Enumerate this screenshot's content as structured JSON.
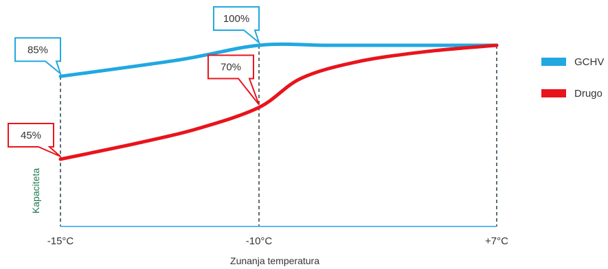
{
  "chart_data": {
    "type": "line",
    "xlabel": "Zunanja temperatura",
    "ylabel": "Kapaciteta",
    "categories": [
      "-15°C",
      "-10°C",
      "+7°C"
    ],
    "x": [
      -15,
      -10,
      7
    ],
    "ylim": [
      0,
      100
    ],
    "grid": false,
    "legend": "right",
    "series": [
      {
        "name": "GCHV",
        "color": "#21a8e0",
        "points": [
          [
            -15,
            85
          ],
          [
            -12,
            93
          ],
          [
            -10,
            100
          ],
          [
            -5,
            100
          ],
          [
            0,
            100
          ],
          [
            7,
            100
          ]
        ]
      },
      {
        "name": "Drugo",
        "color": "#e8141c",
        "points": [
          [
            -15,
            45
          ],
          [
            -13,
            53
          ],
          [
            -11.5,
            60
          ],
          [
            -10,
            70
          ],
          [
            -7,
            84
          ],
          [
            -3,
            92
          ],
          [
            2,
            97
          ],
          [
            7,
            100
          ]
        ]
      }
    ],
    "annotations": [
      {
        "series": 0,
        "x": -15,
        "y": 85,
        "text": "85%"
      },
      {
        "series": 0,
        "x": -10,
        "y": 100,
        "text": "100%"
      },
      {
        "series": 1,
        "x": -10,
        "y": 70,
        "text": "70%"
      },
      {
        "series": 1,
        "x": -15,
        "y": 45,
        "text": "45%"
      }
    ]
  }
}
